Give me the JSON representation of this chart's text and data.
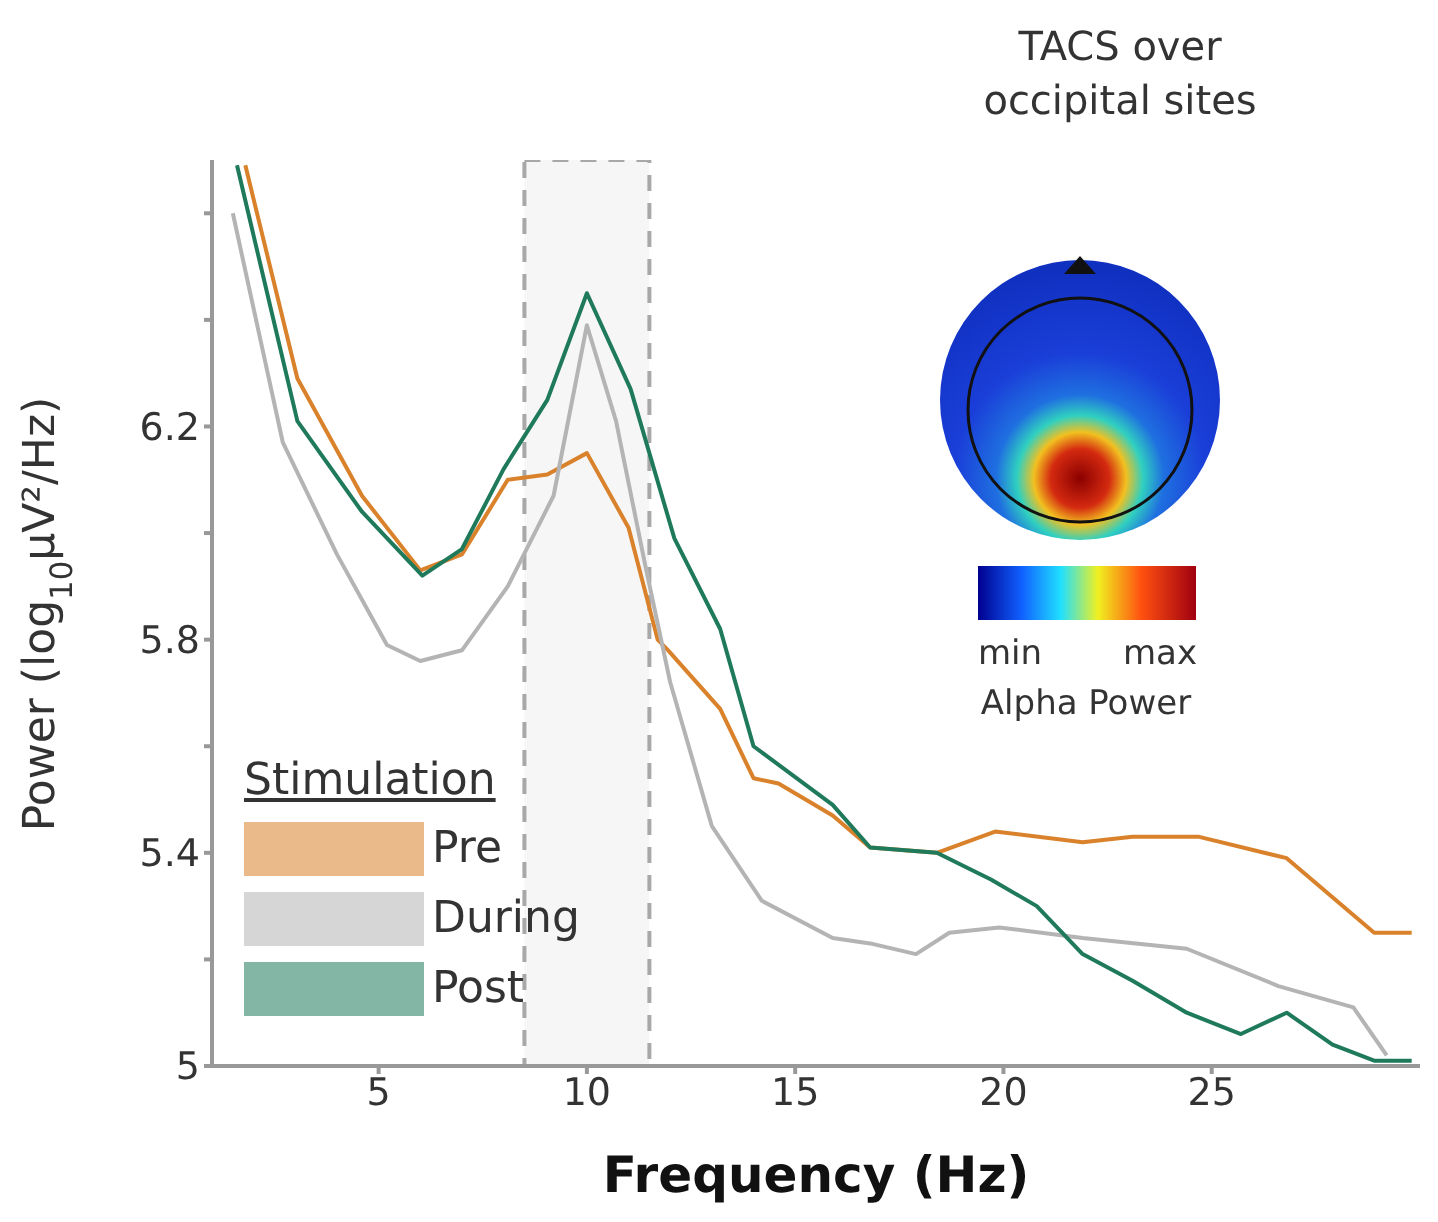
{
  "chart_data": {
    "type": "line",
    "title": "TACS over occipital sites",
    "xlabel": "Frequency (Hz)",
    "ylabel": "Power (log$_{10}$µV²/Hz)",
    "legend_title": "Stimulation",
    "legend": "bottom left",
    "xlim": [
      1,
      30
    ],
    "xticks": [
      5,
      10,
      15,
      20,
      25
    ],
    "ylim": [
      5.0,
      6.7
    ],
    "yticks": [
      5.0,
      {
        "value": 5.2,
        "label": null
      },
      5.4,
      {
        "value": 5.6,
        "label": null
      },
      5.8,
      {
        "value": 6.0,
        "label": null
      },
      6.2,
      {
        "value": 6.4,
        "label": null
      },
      {
        "value": 6.6,
        "label": null
      }
    ],
    "bands": [
      {
        "axis": "x",
        "from": 8.5,
        "to": 11.5,
        "color": "#a8a8a8"
      }
    ],
    "annotations": [
      "min",
      "max",
      "Alpha Power"
    ],
    "series": [
      {
        "name": "Pre",
        "color": "#d9822b",
        "x": [
          1.8,
          3.05,
          4.6,
          6,
          7,
          8.1,
          9.05,
          10,
          11,
          11.7,
          11.95,
          13.2,
          14,
          14.6,
          15.9,
          16.8,
          18.4,
          19.8,
          21.9,
          23.1,
          24.7,
          26.8,
          28.9,
          29.8
        ],
        "values": [
          6.69,
          6.29,
          6.07,
          5.93,
          5.96,
          6.1,
          6.11,
          6.15,
          6.01,
          5.8,
          5.78,
          5.67,
          5.54,
          5.53,
          5.47,
          5.41,
          5.4,
          5.44,
          5.42,
          5.43,
          5.43,
          5.39,
          5.25,
          5.25
        ]
      },
      {
        "name": "During",
        "color": "#b4b4b4",
        "x": [
          1.5,
          2.7,
          4,
          5.2,
          6,
          7,
          8.1,
          9.2,
          10,
          10.7,
          11.4,
          12,
          13,
          14.2,
          15.9,
          16.8,
          17.9,
          18.7,
          19.9,
          21.9,
          24.4,
          26.6,
          28.4,
          29.2
        ],
        "values": [
          6.6,
          6.17,
          5.96,
          5.79,
          5.76,
          5.78,
          5.9,
          6.07,
          6.39,
          6.21,
          5.94,
          5.72,
          5.45,
          5.31,
          5.24,
          5.23,
          5.21,
          5.25,
          5.26,
          5.24,
          5.22,
          5.15,
          5.11,
          5.02
        ]
      },
      {
        "name": "Post",
        "color": "#1f7a5c",
        "x": [
          1.6,
          3.05,
          4.6,
          6.05,
          7,
          8,
          9.05,
          10,
          11.05,
          12.1,
          13.2,
          14,
          15.9,
          16.8,
          18.4,
          19.7,
          20.8,
          21.9,
          23.1,
          24.4,
          25.7,
          26.8,
          27.9,
          28.9,
          29.8
        ],
        "values": [
          6.69,
          6.21,
          6.04,
          5.92,
          5.97,
          6.12,
          6.25,
          6.45,
          6.27,
          5.99,
          5.82,
          5.6,
          5.49,
          5.41,
          5.4,
          5.35,
          5.3,
          5.21,
          5.16,
          5.1,
          5.06,
          5.1,
          5.04,
          5.01,
          5.01
        ]
      }
    ]
  }
}
